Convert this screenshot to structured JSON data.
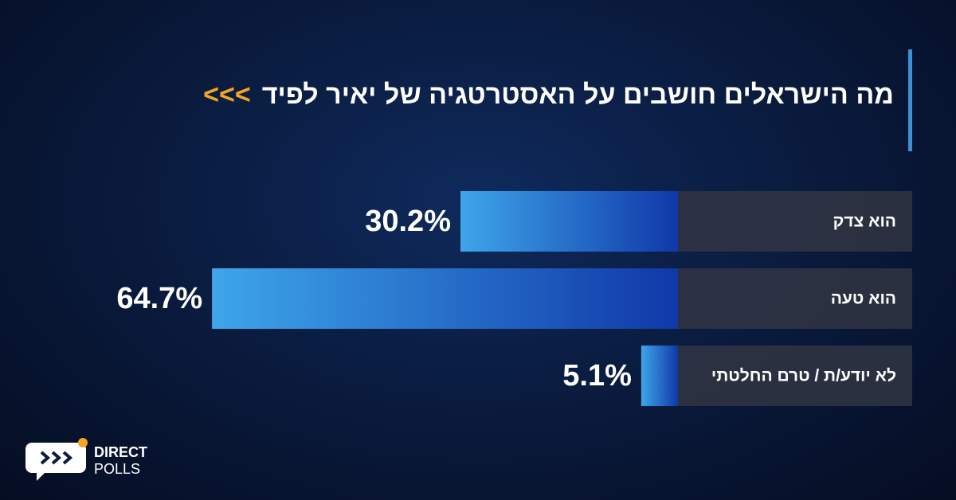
{
  "chart_data": {
    "type": "bar",
    "orientation": "horizontal",
    "title": "מה הישראלים חושבים על האסטרטגיה של יאיר לפיד",
    "title_marker": "<<<",
    "categories": [
      "הוא צדק",
      "הוא טעה",
      "לא יודע/ת / טרם החלטתי"
    ],
    "values": [
      30.2,
      64.7,
      5.1
    ],
    "value_labels": [
      "30.2%",
      "64.7%",
      "5.1%"
    ],
    "color": "#1e5fcf"
  },
  "logo": {
    "top": "DIRECT",
    "bottom": "POLLS"
  }
}
